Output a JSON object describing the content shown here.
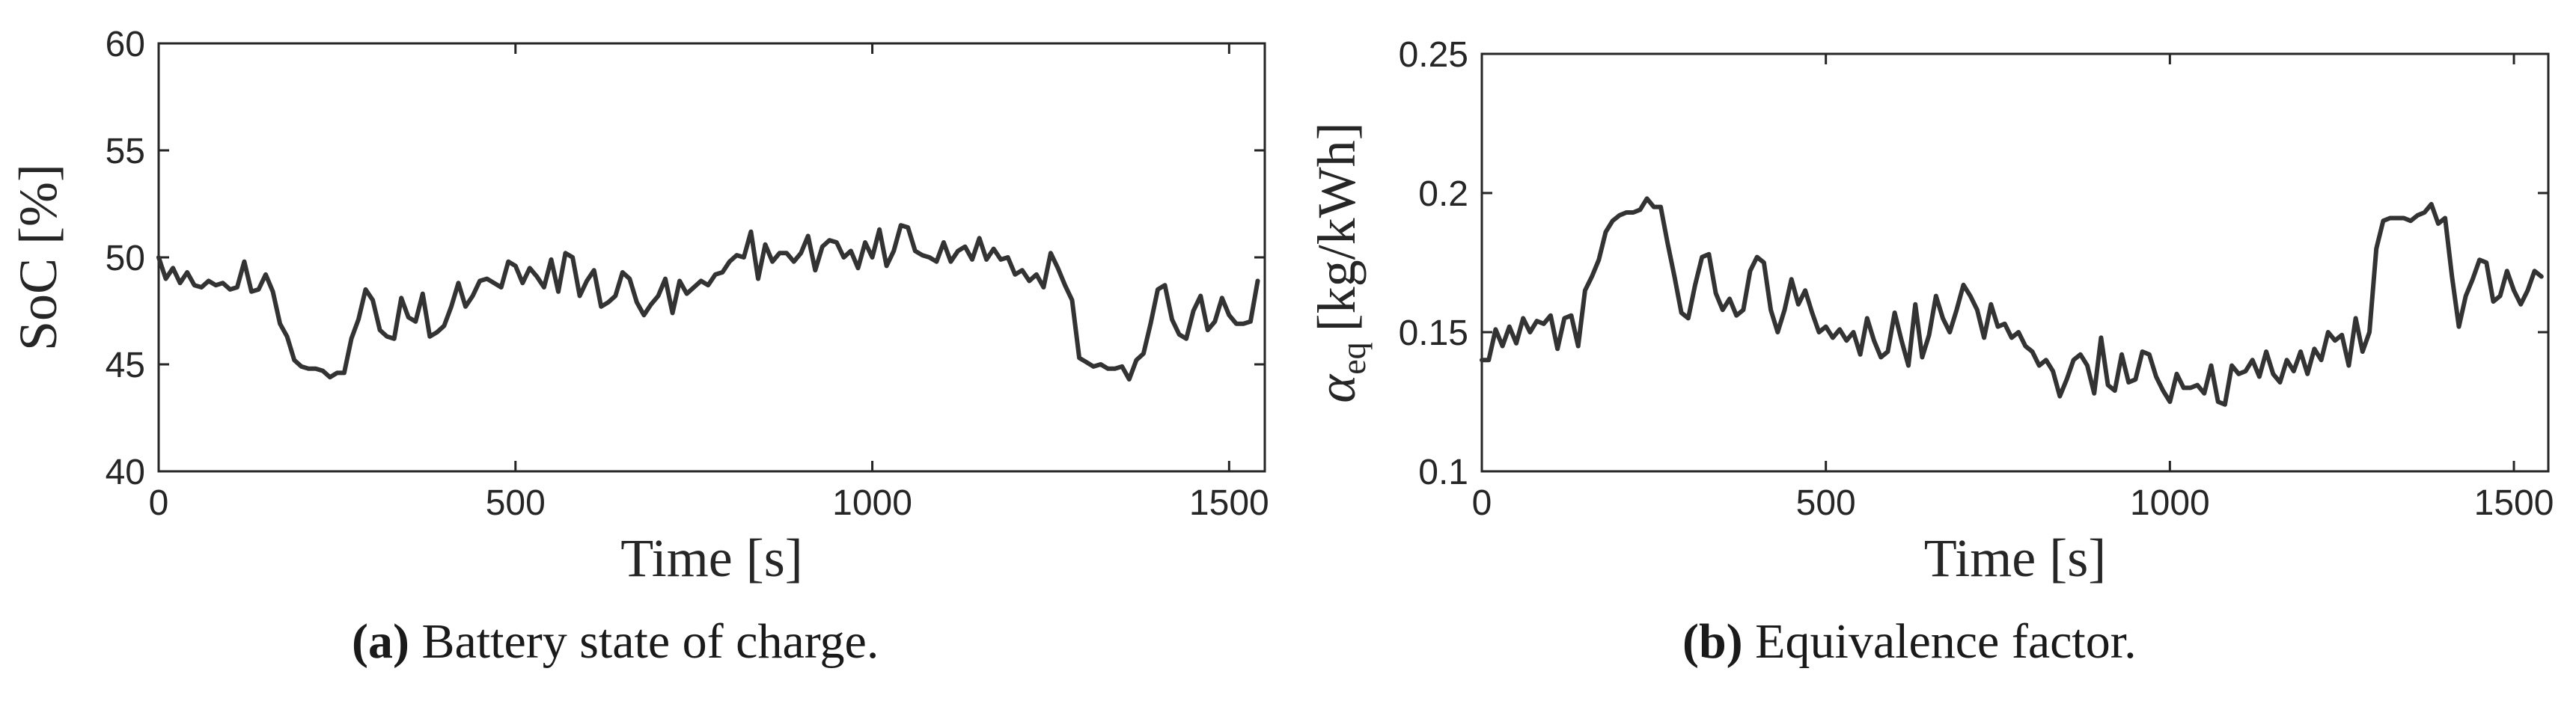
{
  "chart_data": [
    {
      "type": "line",
      "xlabel": "Time [s]",
      "ylabel": "SoC [%]",
      "xlim": [
        0,
        1550
      ],
      "ylim": [
        40,
        60
      ],
      "xticks": [
        0,
        500,
        1000,
        1500
      ],
      "yticks": [
        40,
        45,
        50,
        55,
        60
      ],
      "xtick_labels": [
        "0",
        "500",
        "1000",
        "1500"
      ],
      "ytick_labels": [
        "40",
        "45",
        "50",
        "55",
        "60"
      ],
      "grid": false,
      "color": "#333333",
      "caption_letter": "(a)",
      "caption_text": "Battery state of charge.",
      "x": [
        0,
        10,
        20,
        30,
        40,
        50,
        60,
        70,
        80,
        90,
        100,
        110,
        120,
        130,
        140,
        150,
        160,
        170,
        180,
        190,
        200,
        210,
        220,
        230,
        240,
        250,
        260,
        270,
        280,
        290,
        300,
        310,
        320,
        330,
        340,
        350,
        360,
        370,
        380,
        390,
        400,
        410,
        420,
        430,
        440,
        450,
        460,
        470,
        480,
        490,
        500,
        510,
        520,
        530,
        540,
        550,
        560,
        570,
        580,
        590,
        600,
        610,
        620,
        630,
        640,
        650,
        660,
        670,
        680,
        690,
        700,
        710,
        720,
        730,
        740,
        750,
        760,
        770,
        780,
        790,
        800,
        810,
        820,
        830,
        840,
        850,
        860,
        870,
        880,
        890,
        900,
        910,
        920,
        930,
        940,
        950,
        960,
        970,
        980,
        990,
        1000,
        1010,
        1020,
        1030,
        1040,
        1050,
        1060,
        1070,
        1080,
        1090,
        1100,
        1110,
        1120,
        1130,
        1140,
        1150,
        1160,
        1170,
        1180,
        1190,
        1200,
        1210,
        1220,
        1230,
        1240,
        1250,
        1260,
        1270,
        1280,
        1290,
        1300,
        1310,
        1320,
        1330,
        1340,
        1350,
        1360,
        1370,
        1380,
        1390,
        1400,
        1410,
        1420,
        1430,
        1440,
        1450,
        1460,
        1470,
        1480,
        1490,
        1500,
        1510,
        1520,
        1530,
        1540
      ],
      "y": [
        50.0,
        49.0,
        49.5,
        48.8,
        49.3,
        48.7,
        48.6,
        48.9,
        48.7,
        48.8,
        48.5,
        48.6,
        49.8,
        48.4,
        48.5,
        49.2,
        48.4,
        46.9,
        46.3,
        45.2,
        44.9,
        44.8,
        44.8,
        44.7,
        44.4,
        44.6,
        44.6,
        46.2,
        47.1,
        48.5,
        48.0,
        46.6,
        46.3,
        46.2,
        48.1,
        47.2,
        47.0,
        48.3,
        46.3,
        46.5,
        46.8,
        47.7,
        48.8,
        47.7,
        48.2,
        48.9,
        49.0,
        48.8,
        48.6,
        49.8,
        49.6,
        48.8,
        49.5,
        49.1,
        48.6,
        49.9,
        48.4,
        50.2,
        50.0,
        48.2,
        48.9,
        49.4,
        47.7,
        47.9,
        48.2,
        49.3,
        49.0,
        47.9,
        47.3,
        47.8,
        48.2,
        49.0,
        47.4,
        48.9,
        48.3,
        48.6,
        48.9,
        48.7,
        49.2,
        49.3,
        49.8,
        50.1,
        50.0,
        51.2,
        49.0,
        50.6,
        49.8,
        50.2,
        50.2,
        49.8,
        50.2,
        51.0,
        49.4,
        50.5,
        50.8,
        50.7,
        50.0,
        50.3,
        49.5,
        50.7,
        50.0,
        51.3,
        49.6,
        50.3,
        51.5,
        51.4,
        50.3,
        50.1,
        50.0,
        49.8,
        50.7,
        49.8,
        50.3,
        50.5,
        49.9,
        50.9,
        49.9,
        50.4,
        49.9,
        50.0,
        49.2,
        49.4,
        48.9,
        49.2,
        48.6,
        50.2,
        49.5,
        48.7,
        48.0,
        45.3,
        45.1,
        44.9,
        45.0,
        44.8,
        44.8,
        44.9,
        44.3,
        45.2,
        45.5,
        46.9,
        48.5,
        48.7,
        47.1,
        46.4,
        46.2,
        47.5,
        48.2,
        46.6,
        47.0,
        48.1,
        47.3,
        46.9,
        46.9,
        47.0,
        48.9
      ]
    },
    {
      "type": "line",
      "xlabel": "Time [s]",
      "ylabel_main": "α",
      "ylabel_sub": "eq",
      "ylabel_unit": "[kg/kWh]",
      "xlim": [
        0,
        1550
      ],
      "ylim": [
        0.1,
        0.25
      ],
      "xticks": [
        0,
        500,
        1000,
        1500
      ],
      "yticks": [
        0.1,
        0.15,
        0.2,
        0.25
      ],
      "xtick_labels": [
        "0",
        "500",
        "1000",
        "1500"
      ],
      "ytick_labels": [
        "0.1",
        "0.15",
        "0.2",
        "0.25"
      ],
      "grid": false,
      "color": "#333333",
      "caption_letter": "(b)",
      "caption_text": "Equivalence factor.",
      "x": [
        0,
        10,
        20,
        30,
        40,
        50,
        60,
        70,
        80,
        90,
        100,
        110,
        120,
        130,
        140,
        150,
        160,
        170,
        180,
        190,
        200,
        210,
        220,
        230,
        240,
        250,
        260,
        270,
        280,
        290,
        300,
        310,
        320,
        330,
        340,
        350,
        360,
        370,
        380,
        390,
        400,
        410,
        420,
        430,
        440,
        450,
        460,
        470,
        480,
        490,
        500,
        510,
        520,
        530,
        540,
        550,
        560,
        570,
        580,
        590,
        600,
        610,
        620,
        630,
        640,
        650,
        660,
        670,
        680,
        690,
        700,
        710,
        720,
        730,
        740,
        750,
        760,
        770,
        780,
        790,
        800,
        810,
        820,
        830,
        840,
        850,
        860,
        870,
        880,
        890,
        900,
        910,
        920,
        930,
        940,
        950,
        960,
        970,
        980,
        990,
        1000,
        1010,
        1020,
        1030,
        1040,
        1050,
        1060,
        1070,
        1080,
        1090,
        1100,
        1110,
        1120,
        1130,
        1140,
        1150,
        1160,
        1170,
        1180,
        1190,
        1200,
        1210,
        1220,
        1230,
        1240,
        1250,
        1260,
        1270,
        1280,
        1290,
        1300,
        1310,
        1320,
        1330,
        1340,
        1350,
        1360,
        1370,
        1380,
        1390,
        1400,
        1410,
        1420,
        1430,
        1440,
        1450,
        1460,
        1470,
        1480,
        1490,
        1500,
        1510,
        1520,
        1530,
        1540
      ],
      "y": [
        0.14,
        0.14,
        0.151,
        0.145,
        0.152,
        0.146,
        0.155,
        0.15,
        0.154,
        0.153,
        0.156,
        0.144,
        0.155,
        0.156,
        0.145,
        0.165,
        0.17,
        0.176,
        0.186,
        0.19,
        0.192,
        0.193,
        0.193,
        0.194,
        0.198,
        0.195,
        0.195,
        0.182,
        0.17,
        0.157,
        0.155,
        0.167,
        0.177,
        0.178,
        0.164,
        0.158,
        0.162,
        0.156,
        0.158,
        0.172,
        0.177,
        0.175,
        0.158,
        0.15,
        0.158,
        0.169,
        0.16,
        0.165,
        0.157,
        0.15,
        0.152,
        0.148,
        0.151,
        0.147,
        0.15,
        0.142,
        0.155,
        0.147,
        0.141,
        0.143,
        0.157,
        0.147,
        0.138,
        0.16,
        0.141,
        0.149,
        0.163,
        0.155,
        0.15,
        0.158,
        0.167,
        0.163,
        0.158,
        0.148,
        0.16,
        0.152,
        0.153,
        0.148,
        0.15,
        0.145,
        0.143,
        0.138,
        0.14,
        0.136,
        0.127,
        0.133,
        0.14,
        0.142,
        0.138,
        0.128,
        0.148,
        0.131,
        0.129,
        0.142,
        0.132,
        0.133,
        0.143,
        0.142,
        0.134,
        0.129,
        0.125,
        0.135,
        0.13,
        0.13,
        0.131,
        0.128,
        0.138,
        0.125,
        0.124,
        0.138,
        0.135,
        0.136,
        0.14,
        0.134,
        0.143,
        0.135,
        0.132,
        0.14,
        0.136,
        0.143,
        0.135,
        0.144,
        0.14,
        0.15,
        0.147,
        0.149,
        0.138,
        0.155,
        0.143,
        0.15,
        0.18,
        0.19,
        0.191,
        0.191,
        0.191,
        0.19,
        0.192,
        0.193,
        0.196,
        0.189,
        0.191,
        0.17,
        0.152,
        0.163,
        0.169,
        0.176,
        0.175,
        0.161,
        0.163,
        0.172,
        0.165,
        0.16,
        0.165,
        0.172,
        0.17
      ]
    }
  ]
}
